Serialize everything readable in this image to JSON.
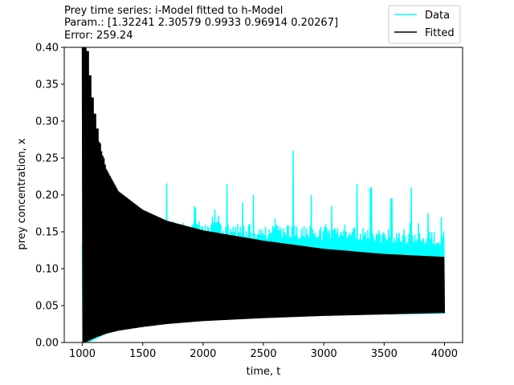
{
  "chart_data": {
    "type": "line",
    "title_lines": [
      "Prey time series: i-Model fitted to h-Model",
      "Param.: [1.32241 2.30579 0.9933  0.96914 0.20267]",
      "Error: 259.24"
    ],
    "xlabel": "time, t",
    "ylabel": "prey concentration, x",
    "xlim": [
      850,
      4150
    ],
    "ylim": [
      0.0,
      0.4
    ],
    "xticks": [
      1000,
      1500,
      2000,
      2500,
      3000,
      3500,
      4000
    ],
    "xtick_labels": [
      "1000",
      "1500",
      "2000",
      "2500",
      "3000",
      "3500",
      "4000"
    ],
    "yticks": [
      0.0,
      0.05,
      0.1,
      0.15,
      0.2,
      0.25,
      0.3,
      0.35,
      0.4
    ],
    "ytick_labels": [
      "0.00",
      "0.05",
      "0.10",
      "0.15",
      "0.20",
      "0.25",
      "0.30",
      "0.35",
      "0.40"
    ],
    "grid": false,
    "legend_position": "top-right",
    "series": [
      {
        "name": "Data",
        "color": "#00ffff",
        "x_range": [
          1000,
          4000
        ],
        "lower_envelope": {
          "x": [
            1000,
            1050,
            1100,
            1200,
            1300,
            1500,
            1700,
            2000,
            2500,
            3000,
            3500,
            4000
          ],
          "y": [
            0.0,
            0.0,
            0.004,
            0.012,
            0.017,
            0.022,
            0.026,
            0.029,
            0.034,
            0.036,
            0.038,
            0.039
          ]
        },
        "upper_envelope": {
          "x": [
            1000,
            1100,
            1300,
            1500,
            2000,
            2500,
            3000,
            3500,
            4000
          ],
          "y": [
            0.135,
            0.15,
            0.155,
            0.16,
            0.165,
            0.16,
            0.158,
            0.155,
            0.15
          ]
        },
        "spikes": {
          "x": [
            1450,
            1700,
            1930,
            2100,
            2200,
            2330,
            2420,
            2745,
            2900,
            3070,
            3280,
            3390,
            3560,
            3720,
            3860,
            3970
          ],
          "y": [
            0.185,
            0.21,
            0.185,
            0.18,
            0.215,
            0.19,
            0.2,
            0.26,
            0.2,
            0.185,
            0.215,
            0.21,
            0.195,
            0.21,
            0.175,
            0.17
          ]
        }
      },
      {
        "name": "Fitted",
        "color": "#000000",
        "x_range": [
          1000,
          4000
        ],
        "lower_envelope": {
          "x": [
            1000,
            1020,
            1050,
            1100,
            1200,
            1300,
            1500,
            1700,
            2000,
            2500,
            3000,
            3500,
            4000
          ],
          "y": [
            0.0,
            0.0,
            0.002,
            0.006,
            0.012,
            0.016,
            0.021,
            0.025,
            0.029,
            0.033,
            0.036,
            0.038,
            0.04
          ]
        },
        "upper_envelope": {
          "x": [
            1000,
            1020,
            1050,
            1100,
            1150,
            1200,
            1300,
            1500,
            1700,
            2000,
            2500,
            3000,
            3500,
            4000
          ],
          "y": [
            0.4,
            0.4,
            0.36,
            0.3,
            0.265,
            0.235,
            0.205,
            0.18,
            0.165,
            0.152,
            0.138,
            0.127,
            0.12,
            0.116
          ]
        },
        "peaks": {
          "x": [
            1010,
            1025,
            1045,
            1065,
            1085,
            1105,
            1125,
            1150,
            1175,
            1200
          ],
          "y": [
            0.4,
            0.4,
            0.395,
            0.362,
            0.332,
            0.31,
            0.29,
            0.27,
            0.25,
            0.235
          ]
        }
      }
    ]
  }
}
